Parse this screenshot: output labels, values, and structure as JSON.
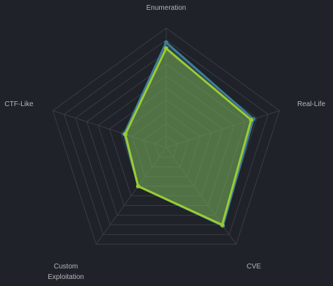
{
  "chart_data": {
    "type": "radar",
    "categories": [
      "Enumeration",
      "Real-Life",
      "CVE",
      "Custom Exploitation",
      "CTF-Like"
    ],
    "series": [
      {
        "color": "#3e7d9c",
        "values": [
          88,
          77,
          81,
          40,
          37
        ]
      },
      {
        "color": "#9ccc2e",
        "values": [
          83,
          75,
          80,
          40,
          36
        ]
      }
    ],
    "rlim": [
      0,
      100
    ],
    "rticks": [
      10,
      20,
      30,
      40,
      50,
      60,
      70,
      80,
      90,
      100
    ],
    "grid": true
  }
}
